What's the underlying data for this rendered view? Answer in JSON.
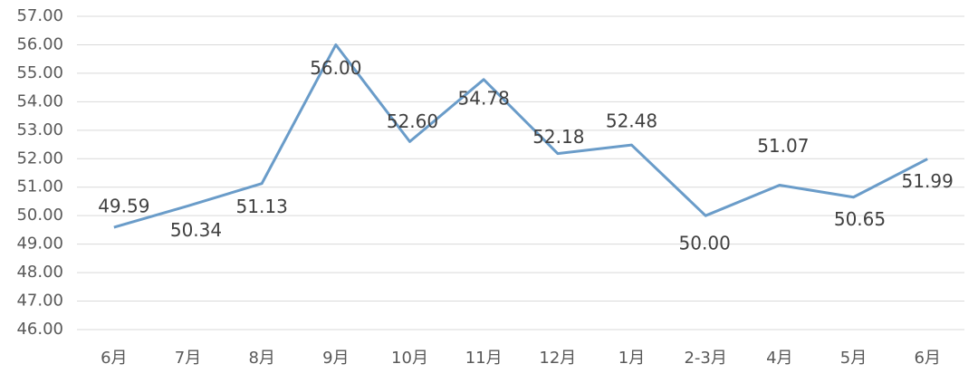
{
  "chart_data": {
    "type": "line",
    "categories": [
      "6月",
      "7月",
      "8月",
      "9月",
      "10月",
      "11月",
      "12月",
      "1月",
      "2-3月",
      "4月",
      "5月",
      "6月"
    ],
    "values": [
      49.59,
      50.34,
      51.13,
      56.0,
      52.6,
      54.78,
      52.18,
      52.48,
      50.0,
      51.07,
      50.65,
      51.99
    ],
    "value_labels": [
      "49.59",
      "50.34",
      "51.13",
      "56.00",
      "52.60",
      "54.78",
      "52.18",
      "52.48",
      "50.00",
      "51.07",
      "50.65",
      "51.99"
    ],
    "color": "#6a9cc9",
    "ylim": [
      46,
      57
    ],
    "yticks": [
      {
        "value": 46,
        "label": "46.00"
      },
      {
        "value": 47,
        "label": "47.00"
      },
      {
        "value": 48,
        "label": "48.00"
      },
      {
        "value": 49,
        "label": "49.00"
      },
      {
        "value": 50,
        "label": "50.00"
      },
      {
        "value": 51,
        "label": "51.00"
      },
      {
        "value": 52,
        "label": "52.00"
      },
      {
        "value": 53,
        "label": "53.00"
      },
      {
        "value": 54,
        "label": "54.00"
      },
      {
        "value": 55,
        "label": "55.00"
      },
      {
        "value": 56,
        "label": "56.00"
      },
      {
        "value": 57,
        "label": "57.00"
      }
    ],
    "grid": true
  }
}
